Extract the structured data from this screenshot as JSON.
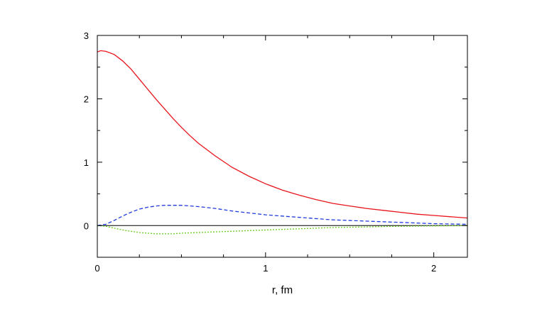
{
  "chart_data": {
    "type": "line",
    "title": "",
    "xlabel": "r, fm",
    "ylabel": "",
    "xlim": [
      0,
      2.2
    ],
    "ylim": [
      -0.5,
      3
    ],
    "xticks": [
      0,
      1,
      2
    ],
    "xtick_labels": [
      "0",
      "1",
      "2"
    ],
    "yticks": [
      0,
      1,
      2,
      3
    ],
    "ytick_labels": [
      "0",
      "1",
      "2",
      "3"
    ],
    "grid": false,
    "legend": "none",
    "zero_line": true,
    "series": [
      {
        "color": "#e8141c",
        "style": "solid",
        "x": [
          0,
          0.02,
          0.05,
          0.1,
          0.15,
          0.2,
          0.25,
          0.3,
          0.35,
          0.4,
          0.45,
          0.5,
          0.55,
          0.6,
          0.7,
          0.8,
          0.9,
          1.0,
          1.1,
          1.2,
          1.3,
          1.4,
          1.5,
          1.6,
          1.7,
          1.8,
          1.9,
          2.0,
          2.1,
          2.2
        ],
        "y": [
          2.74,
          2.76,
          2.75,
          2.7,
          2.6,
          2.47,
          2.31,
          2.15,
          1.99,
          1.84,
          1.69,
          1.55,
          1.42,
          1.3,
          1.1,
          0.92,
          0.78,
          0.66,
          0.56,
          0.48,
          0.41,
          0.35,
          0.31,
          0.27,
          0.24,
          0.21,
          0.18,
          0.16,
          0.14,
          0.12
        ]
      },
      {
        "color": "#1f3bdc",
        "style": "dashed",
        "x": [
          0,
          0.05,
          0.1,
          0.15,
          0.2,
          0.25,
          0.3,
          0.35,
          0.4,
          0.45,
          0.5,
          0.6,
          0.7,
          0.8,
          0.9,
          1.0,
          1.2,
          1.4,
          1.6,
          1.8,
          2.0,
          2.2
        ],
        "y": [
          0,
          0.02,
          0.08,
          0.15,
          0.21,
          0.26,
          0.29,
          0.31,
          0.32,
          0.32,
          0.32,
          0.3,
          0.27,
          0.23,
          0.2,
          0.17,
          0.13,
          0.09,
          0.07,
          0.05,
          0.03,
          0.02
        ]
      },
      {
        "color": "#66cc1a",
        "style": "dotted",
        "x": [
          0,
          0.05,
          0.1,
          0.15,
          0.2,
          0.25,
          0.3,
          0.35,
          0.4,
          0.45,
          0.5,
          0.6,
          0.7,
          0.8,
          1.0,
          1.2,
          1.4,
          1.6,
          1.8,
          2.0,
          2.2
        ],
        "y": [
          0,
          -0.01,
          -0.04,
          -0.07,
          -0.09,
          -0.11,
          -0.12,
          -0.13,
          -0.13,
          -0.13,
          -0.12,
          -0.11,
          -0.1,
          -0.09,
          -0.07,
          -0.05,
          -0.03,
          -0.02,
          -0.01,
          -0.005,
          0
        ]
      }
    ]
  }
}
